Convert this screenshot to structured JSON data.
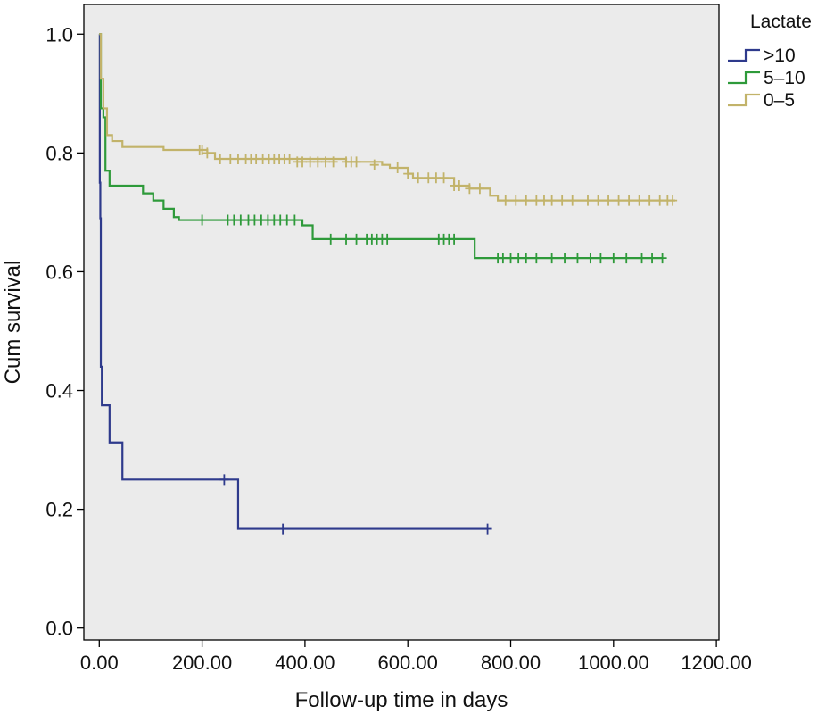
{
  "chart_data": {
    "type": "line",
    "title": "",
    "xlabel": "Follow-up time in days",
    "ylabel": "Cum survival",
    "xlim": [
      -30,
      1205
    ],
    "ylim": [
      -0.02,
      1.05
    ],
    "xticks": [
      0,
      200,
      400,
      600,
      800,
      1000,
      1200
    ],
    "xtick_labels": [
      "0.00",
      "200.00",
      "400.00",
      "600.00",
      "800.00",
      "1000.00",
      "1200.00"
    ],
    "yticks": [
      0.0,
      0.2,
      0.4,
      0.6,
      0.8,
      1.0
    ],
    "ytick_labels": [
      "0.0",
      "0.2",
      "0.4",
      "0.6",
      "0.8",
      "1.0"
    ],
    "grid": false,
    "background": "#ebebeb",
    "legend": {
      "title": "Lactate",
      "placement": "outside-top-right"
    },
    "series": [
      {
        "name": ">10",
        "color": "#2e3a8c",
        "steps": [
          [
            0,
            1.0
          ],
          [
            1,
            0.75
          ],
          [
            2,
            0.69
          ],
          [
            3,
            0.44
          ],
          [
            5,
            0.375
          ],
          [
            20,
            0.3125
          ],
          [
            45,
            0.25
          ],
          [
            270,
            0.167
          ],
          [
            755,
            0.167
          ]
        ],
        "censored": [
          [
            243,
            0.25
          ],
          [
            357,
            0.167
          ],
          [
            755,
            0.167
          ]
        ]
      },
      {
        "name": "5–10",
        "color": "#2e9a3a",
        "steps": [
          [
            0,
            1.0
          ],
          [
            3,
            0.875
          ],
          [
            8,
            0.86
          ],
          [
            12,
            0.77
          ],
          [
            20,
            0.745
          ],
          [
            85,
            0.732
          ],
          [
            105,
            0.72
          ],
          [
            125,
            0.706
          ],
          [
            145,
            0.692
          ],
          [
            155,
            0.687
          ],
          [
            395,
            0.678
          ],
          [
            415,
            0.655
          ],
          [
            730,
            0.623
          ],
          [
            1095,
            0.623
          ]
        ],
        "censored": [
          [
            200,
            0.687
          ],
          [
            250,
            0.687
          ],
          [
            262,
            0.687
          ],
          [
            275,
            0.687
          ],
          [
            290,
            0.687
          ],
          [
            302,
            0.687
          ],
          [
            315,
            0.687
          ],
          [
            328,
            0.687
          ],
          [
            340,
            0.687
          ],
          [
            352,
            0.687
          ],
          [
            365,
            0.687
          ],
          [
            380,
            0.687
          ],
          [
            450,
            0.655
          ],
          [
            480,
            0.655
          ],
          [
            500,
            0.655
          ],
          [
            520,
            0.655
          ],
          [
            530,
            0.655
          ],
          [
            540,
            0.655
          ],
          [
            550,
            0.655
          ],
          [
            560,
            0.655
          ],
          [
            660,
            0.655
          ],
          [
            670,
            0.655
          ],
          [
            680,
            0.655
          ],
          [
            690,
            0.655
          ],
          [
            775,
            0.623
          ],
          [
            785,
            0.623
          ],
          [
            800,
            0.623
          ],
          [
            815,
            0.623
          ],
          [
            830,
            0.623
          ],
          [
            850,
            0.623
          ],
          [
            880,
            0.623
          ],
          [
            905,
            0.623
          ],
          [
            930,
            0.623
          ],
          [
            955,
            0.623
          ],
          [
            975,
            0.623
          ],
          [
            1000,
            0.623
          ],
          [
            1025,
            0.623
          ],
          [
            1055,
            0.623
          ],
          [
            1075,
            0.623
          ],
          [
            1095,
            0.623
          ]
        ]
      },
      {
        "name": "0–5",
        "color": "#c2b36a",
        "steps": [
          [
            0,
            1.0
          ],
          [
            3,
            0.925
          ],
          [
            8,
            0.875
          ],
          [
            15,
            0.83
          ],
          [
            25,
            0.82
          ],
          [
            45,
            0.81
          ],
          [
            125,
            0.805
          ],
          [
            210,
            0.8
          ],
          [
            225,
            0.79
          ],
          [
            480,
            0.785
          ],
          [
            550,
            0.78
          ],
          [
            565,
            0.775
          ],
          [
            600,
            0.765
          ],
          [
            610,
            0.758
          ],
          [
            690,
            0.745
          ],
          [
            720,
            0.74
          ],
          [
            760,
            0.728
          ],
          [
            775,
            0.72
          ],
          [
            1120,
            0.72
          ]
        ],
        "censored": [
          [
            195,
            0.805
          ],
          [
            200,
            0.805
          ],
          [
            210,
            0.8
          ],
          [
            235,
            0.79
          ],
          [
            255,
            0.79
          ],
          [
            270,
            0.79
          ],
          [
            285,
            0.79
          ],
          [
            295,
            0.79
          ],
          [
            305,
            0.79
          ],
          [
            318,
            0.79
          ],
          [
            330,
            0.79
          ],
          [
            340,
            0.79
          ],
          [
            350,
            0.79
          ],
          [
            360,
            0.79
          ],
          [
            370,
            0.79
          ],
          [
            385,
            0.785
          ],
          [
            395,
            0.785
          ],
          [
            410,
            0.785
          ],
          [
            425,
            0.785
          ],
          [
            440,
            0.785
          ],
          [
            455,
            0.785
          ],
          [
            480,
            0.785
          ],
          [
            490,
            0.785
          ],
          [
            500,
            0.785
          ],
          [
            535,
            0.78
          ],
          [
            580,
            0.775
          ],
          [
            600,
            0.765
          ],
          [
            620,
            0.758
          ],
          [
            640,
            0.758
          ],
          [
            655,
            0.758
          ],
          [
            670,
            0.758
          ],
          [
            690,
            0.745
          ],
          [
            700,
            0.745
          ],
          [
            720,
            0.74
          ],
          [
            740,
            0.74
          ],
          [
            790,
            0.72
          ],
          [
            810,
            0.72
          ],
          [
            830,
            0.72
          ],
          [
            850,
            0.72
          ],
          [
            865,
            0.72
          ],
          [
            880,
            0.72
          ],
          [
            900,
            0.72
          ],
          [
            920,
            0.72
          ],
          [
            950,
            0.72
          ],
          [
            970,
            0.72
          ],
          [
            990,
            0.72
          ],
          [
            1010,
            0.72
          ],
          [
            1030,
            0.72
          ],
          [
            1050,
            0.72
          ],
          [
            1070,
            0.72
          ],
          [
            1090,
            0.72
          ],
          [
            1105,
            0.72
          ],
          [
            1115,
            0.72
          ]
        ]
      }
    ]
  }
}
